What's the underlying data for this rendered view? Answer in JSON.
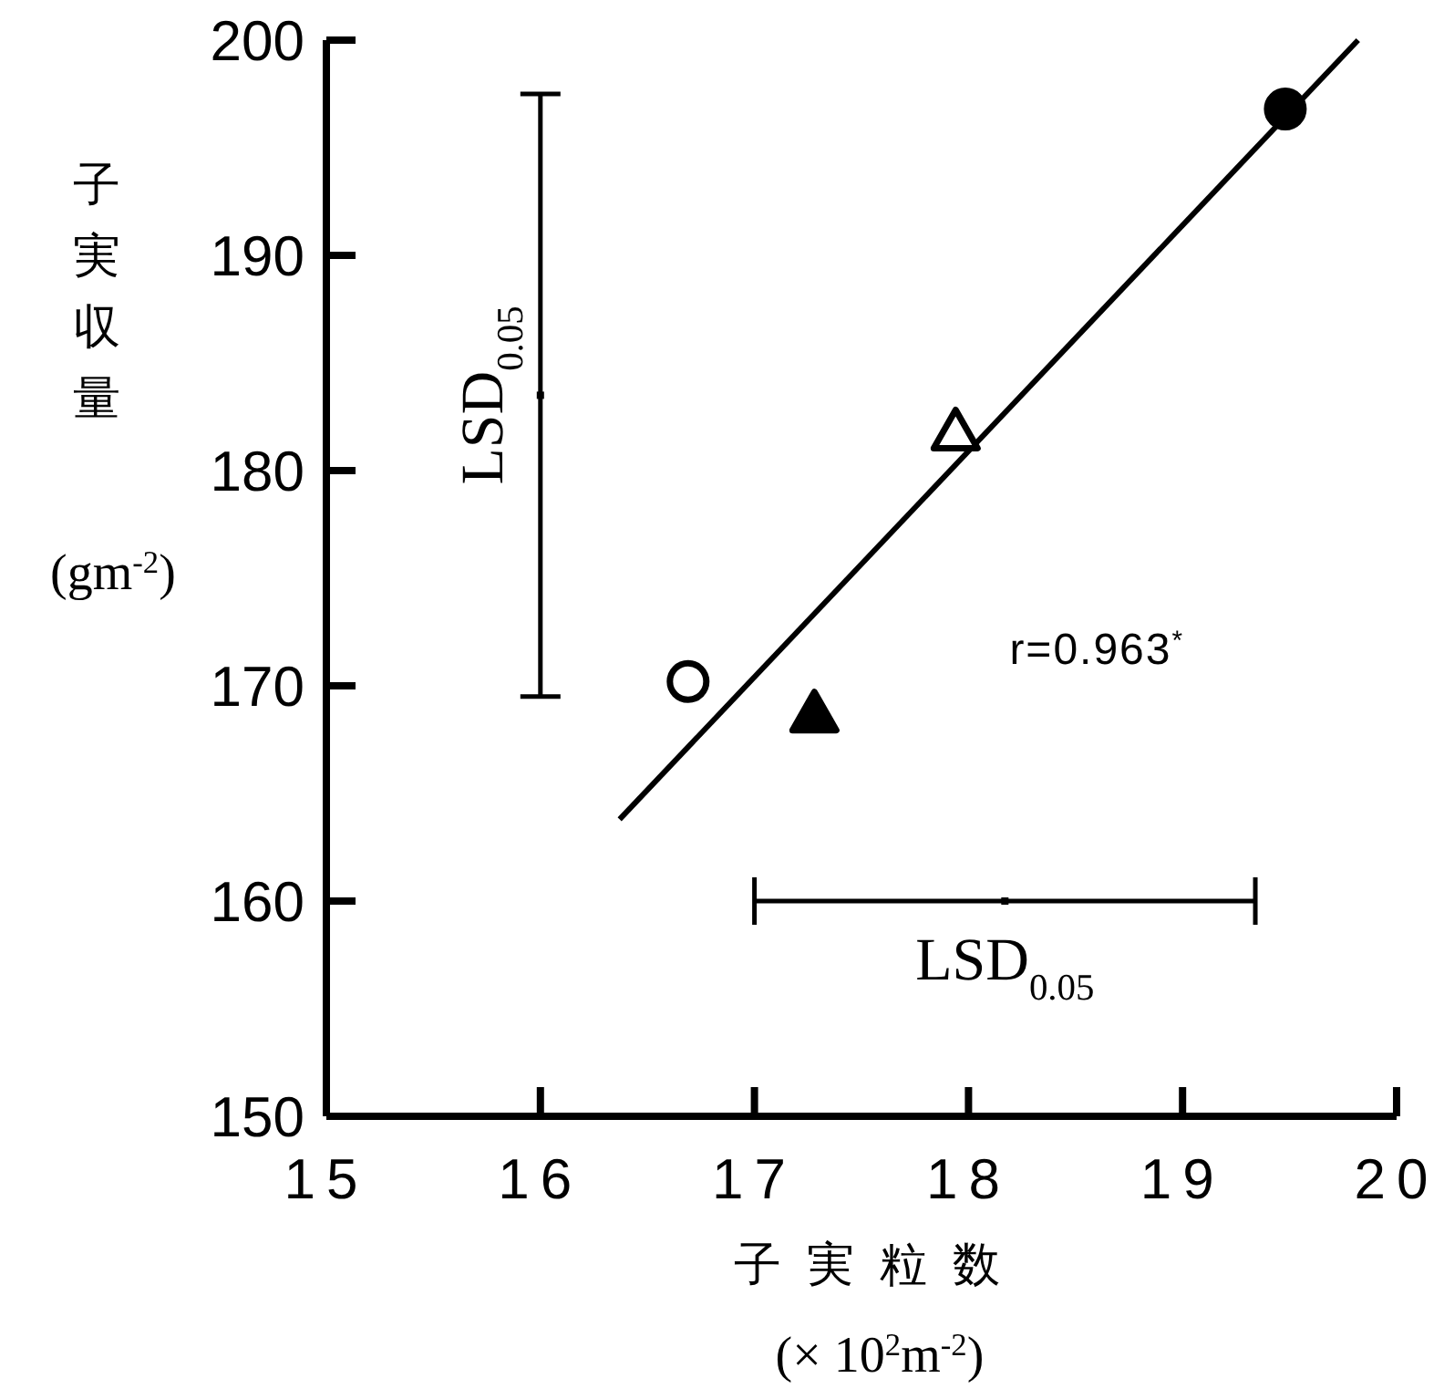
{
  "chart_data": {
    "type": "scatter",
    "xlabel": "子実粒数 (× 10$^{2}$m$^{-2}$)",
    "ylabel": "子実収量 (gm$^{-2}$)",
    "xlim": [
      15,
      20
    ],
    "ylim": [
      150,
      200
    ],
    "xticks": [
      15,
      16,
      17,
      18,
      19,
      20
    ],
    "yticks": [
      150,
      160,
      170,
      180,
      190,
      200
    ],
    "grid": false,
    "series": [
      {
        "type": "scatter",
        "marker": "circle",
        "color": "#ffffff",
        "x": [
          16.69
        ],
        "values": [
          170.2
        ]
      },
      {
        "type": "scatter",
        "marker": "triangle",
        "color": "#000000",
        "x": [
          17.28
        ],
        "values": [
          168.7
        ]
      },
      {
        "type": "scatter",
        "marker": "triangle",
        "color": "#ffffff",
        "x": [
          17.94
        ],
        "values": [
          181.8
        ]
      },
      {
        "type": "scatter",
        "marker": "circle",
        "color": "#000000",
        "x": [
          19.48
        ],
        "values": [
          196.8
        ]
      },
      {
        "type": "line",
        "color": "#000000",
        "line_style": "solid",
        "marker": "none",
        "x": [
          16.37,
          19.82
        ],
        "values": [
          163.8,
          200.0
        ]
      },
      {
        "type": "scatter",
        "marker": "square",
        "color": "#000000",
        "x": [
          16.0,
          18.17
        ],
        "values": [
          183.5,
          160.0
        ],
        "errors": [
          [
            169.5,
            197.5
          ],
          null
        ],
        "xerrors": [
          null,
          [
            17.0,
            19.34
          ]
        ]
      }
    ],
    "annotations": [
      {
        "text": "LSD$_{0.05}$",
        "x": 16.0,
        "y": 183.5
      },
      {
        "text": "LSD$_{0.05}$",
        "x": 18.17,
        "y": 160.0
      },
      "r=0.963$^{*}$"
    ]
  }
}
